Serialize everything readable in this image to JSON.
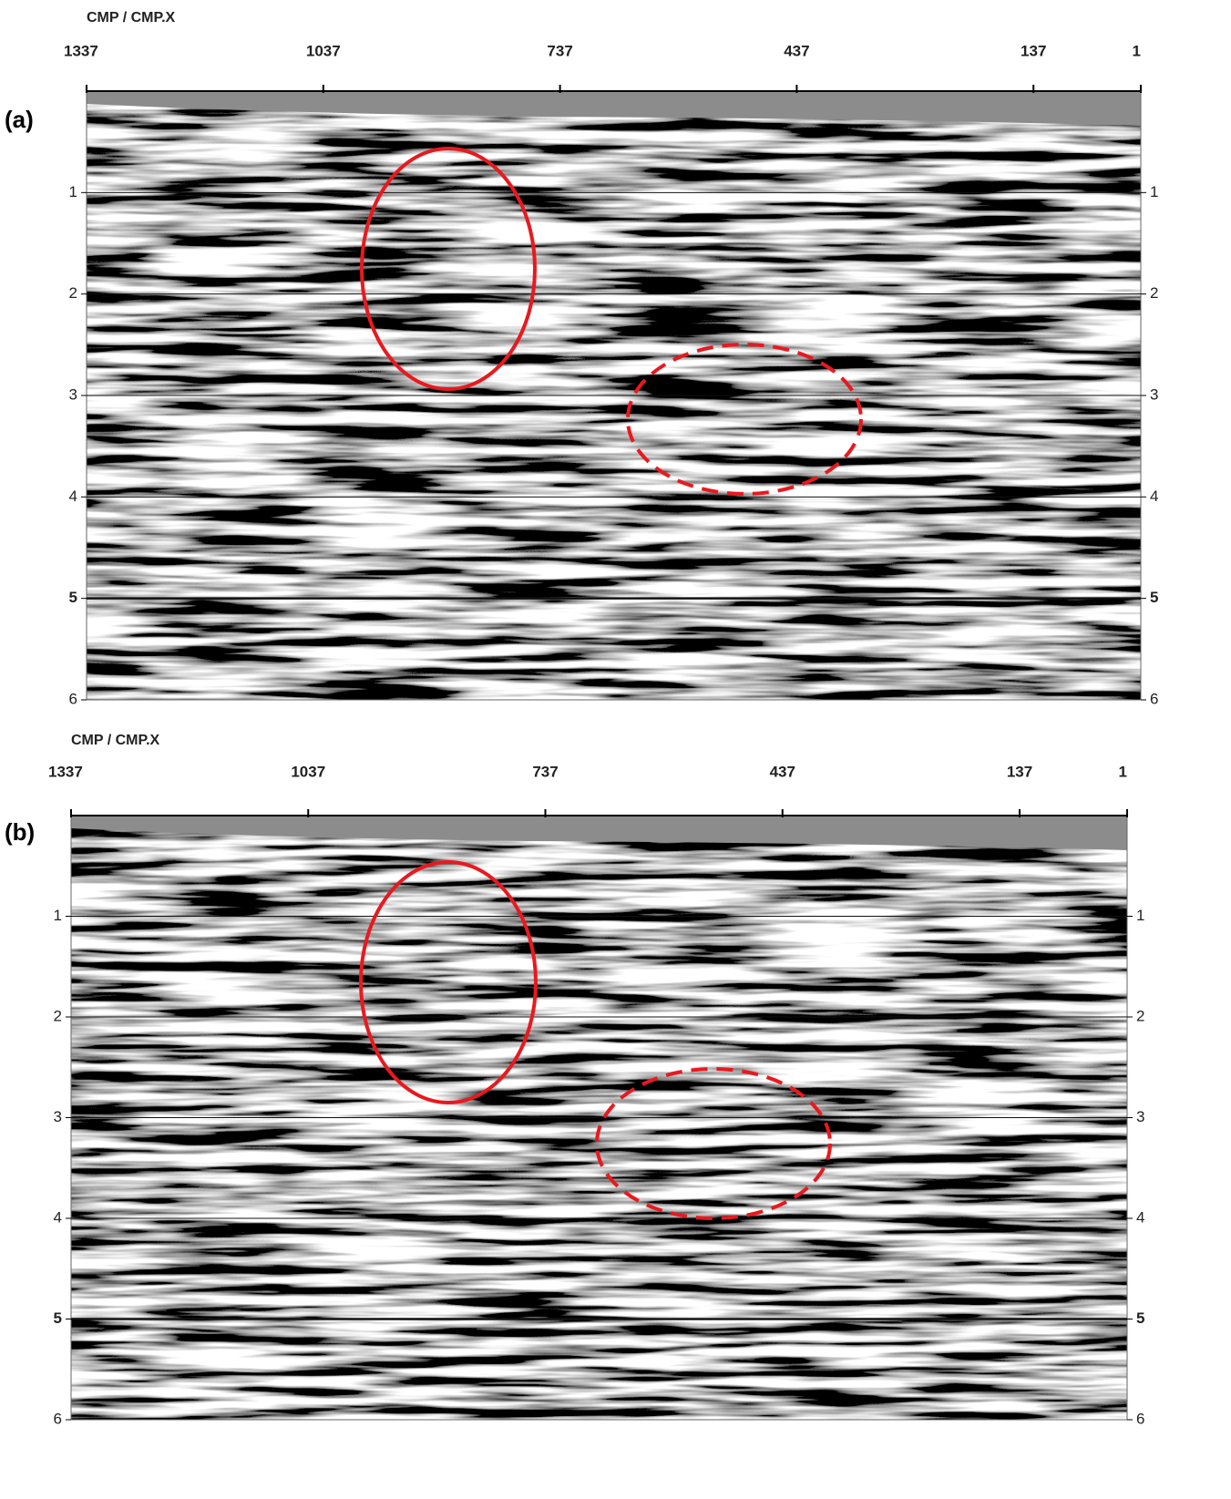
{
  "chart_data": [
    {
      "type": "image",
      "panel_label": "(a)",
      "xlabel": "CMP / CMP.X",
      "xlim": [
        1337,
        1
      ],
      "xticks": [
        1337,
        1037,
        737,
        437,
        137,
        1
      ],
      "ylim": [
        0,
        6
      ],
      "yticks": [
        1,
        2,
        3,
        4,
        5,
        6
      ],
      "bold_ytick": 5,
      "grid": true
    },
    {
      "type": "image",
      "panel_label": "(b)",
      "xlabel": "CMP / CMP.X",
      "xlim": [
        1337,
        1
      ],
      "xticks": [
        1337,
        1037,
        737,
        437,
        137,
        1
      ],
      "ylim": [
        0,
        6
      ],
      "yticks": [
        1,
        2,
        3,
        4,
        5,
        6
      ],
      "bold_ytick": 5,
      "grid": true
    }
  ]
}
